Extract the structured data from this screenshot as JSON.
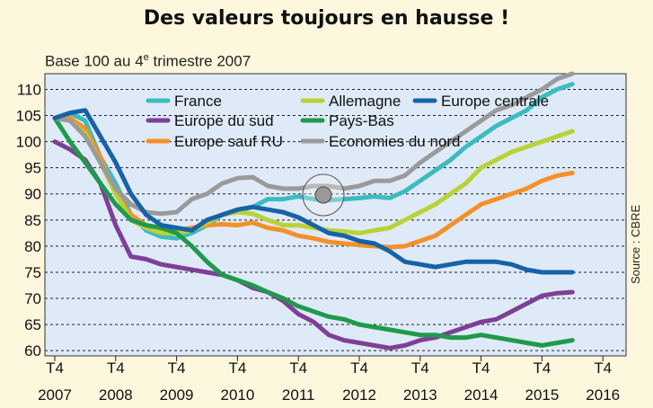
{
  "chart_data": {
    "type": "line",
    "title": "Des valeurs toujours en hausse !",
    "subtitle": {
      "base": "Base 100 au 4",
      "sup": "e",
      "rest": " trimestre 2007"
    },
    "source": "Source : CBRE",
    "x_ticks": [
      {
        "top": "T4",
        "bottom": "2007"
      },
      {
        "top": "T4",
        "bottom": "2008"
      },
      {
        "top": "T4",
        "bottom": "2009"
      },
      {
        "top": "T4",
        "bottom": "2010"
      },
      {
        "top": "T4",
        "bottom": "2011"
      },
      {
        "top": "T4",
        "bottom": "2012"
      },
      {
        "top": "T4",
        "bottom": "2013"
      },
      {
        "top": "T4",
        "bottom": "2014"
      },
      {
        "top": "T4",
        "bottom": "2015"
      },
      {
        "top": "T4",
        "bottom": "2016"
      }
    ],
    "y_ticks": [
      60,
      65,
      70,
      75,
      80,
      85,
      90,
      95,
      100,
      105,
      110
    ],
    "ylim": [
      59,
      113
    ],
    "xlim": [
      2007.75,
      2017.05
    ],
    "grid": "horizontal dashed",
    "legend": "top inside plot",
    "colors": {
      "plot_bg": "#dfeaf8",
      "page_bg": "#fdf7dd"
    },
    "series": [
      {
        "name": "France",
        "color": "#3bbcbf",
        "points": [
          [
            2007.75,
            104.5
          ],
          [
            2008.0,
            105.5
          ],
          [
            2008.25,
            104
          ],
          [
            2008.5,
            97
          ],
          [
            2008.75,
            92
          ],
          [
            2009.0,
            86
          ],
          [
            2009.25,
            83
          ],
          [
            2009.5,
            81.8
          ],
          [
            2009.75,
            81.5
          ],
          [
            2010.0,
            82.5
          ],
          [
            2010.25,
            84
          ],
          [
            2010.5,
            86
          ],
          [
            2010.75,
            86.8
          ],
          [
            2011.0,
            87.5
          ],
          [
            2011.25,
            89
          ],
          [
            2011.5,
            89
          ],
          [
            2011.75,
            89.5
          ],
          [
            2012.0,
            89
          ],
          [
            2012.25,
            88.8
          ],
          [
            2012.5,
            89
          ],
          [
            2012.75,
            89.2
          ],
          [
            2013.0,
            89.5
          ],
          [
            2013.25,
            89.2
          ],
          [
            2013.5,
            90.5
          ],
          [
            2013.75,
            92.5
          ],
          [
            2014.0,
            94.5
          ],
          [
            2014.25,
            96.5
          ],
          [
            2014.5,
            99
          ],
          [
            2014.75,
            101
          ],
          [
            2015.0,
            103
          ],
          [
            2015.25,
            104.5
          ],
          [
            2015.5,
            106
          ],
          [
            2015.75,
            108.5
          ],
          [
            2016.0,
            110
          ],
          [
            2016.25,
            111
          ]
        ]
      },
      {
        "name": "Europe du sud",
        "color": "#7e3f98",
        "points": [
          [
            2007.75,
            100
          ],
          [
            2008.0,
            98.5
          ],
          [
            2008.25,
            96.5
          ],
          [
            2008.5,
            92
          ],
          [
            2008.75,
            84
          ],
          [
            2009.0,
            78
          ],
          [
            2009.25,
            77.5
          ],
          [
            2009.5,
            76.5
          ],
          [
            2009.75,
            76
          ],
          [
            2010.0,
            75.5
          ],
          [
            2010.25,
            75
          ],
          [
            2010.5,
            74.5
          ],
          [
            2010.75,
            73.5
          ],
          [
            2011.0,
            72
          ],
          [
            2011.25,
            71.2
          ],
          [
            2011.5,
            69.5
          ],
          [
            2011.75,
            67
          ],
          [
            2012.0,
            65.5
          ],
          [
            2012.25,
            63
          ],
          [
            2012.5,
            62
          ],
          [
            2012.75,
            61.5
          ],
          [
            2013.0,
            61
          ],
          [
            2013.25,
            60.5
          ],
          [
            2013.5,
            61
          ],
          [
            2013.75,
            62
          ],
          [
            2014.0,
            62.5
          ],
          [
            2014.25,
            63.5
          ],
          [
            2014.5,
            64.5
          ],
          [
            2014.75,
            65.5
          ],
          [
            2015.0,
            66
          ],
          [
            2015.25,
            67.5
          ],
          [
            2015.5,
            69
          ],
          [
            2015.75,
            70.5
          ],
          [
            2016.0,
            71
          ],
          [
            2016.25,
            71.2
          ]
        ]
      },
      {
        "name": "Europe sauf RU",
        "color": "#f4902a",
        "points": [
          [
            2007.75,
            104.5
          ],
          [
            2008.0,
            104.5
          ],
          [
            2008.25,
            102.5
          ],
          [
            2008.5,
            97
          ],
          [
            2008.75,
            90
          ],
          [
            2009.0,
            86
          ],
          [
            2009.25,
            84
          ],
          [
            2009.5,
            83
          ],
          [
            2009.75,
            83
          ],
          [
            2010.0,
            83.5
          ],
          [
            2010.25,
            84
          ],
          [
            2010.5,
            84.2
          ],
          [
            2010.75,
            84
          ],
          [
            2011.0,
            84.5
          ],
          [
            2011.25,
            83.5
          ],
          [
            2011.5,
            83
          ],
          [
            2011.75,
            82
          ],
          [
            2012.0,
            81.5
          ],
          [
            2012.25,
            80.8
          ],
          [
            2012.5,
            80.5
          ],
          [
            2012.75,
            80.2
          ],
          [
            2013.0,
            80
          ],
          [
            2013.25,
            79.8
          ],
          [
            2013.5,
            80
          ],
          [
            2013.75,
            81
          ],
          [
            2014.0,
            82
          ],
          [
            2014.25,
            84
          ],
          [
            2014.5,
            86
          ],
          [
            2014.75,
            88
          ],
          [
            2015.0,
            89
          ],
          [
            2015.25,
            90
          ],
          [
            2015.5,
            91
          ],
          [
            2015.75,
            92.5
          ],
          [
            2016.0,
            93.5
          ],
          [
            2016.25,
            94
          ]
        ]
      },
      {
        "name": "Allemagne",
        "color": "#b9d234",
        "points": [
          [
            2007.75,
            104.5
          ],
          [
            2008.0,
            104
          ],
          [
            2008.25,
            101.5
          ],
          [
            2008.5,
            96
          ],
          [
            2008.75,
            90
          ],
          [
            2009.0,
            85
          ],
          [
            2009.25,
            83.5
          ],
          [
            2009.5,
            82.5
          ],
          [
            2009.75,
            82.5
          ],
          [
            2010.0,
            83
          ],
          [
            2010.25,
            84.5
          ],
          [
            2010.5,
            86
          ],
          [
            2010.75,
            86.5
          ],
          [
            2011.0,
            86.2
          ],
          [
            2011.25,
            85
          ],
          [
            2011.5,
            84
          ],
          [
            2011.75,
            84
          ],
          [
            2012.0,
            83.5
          ],
          [
            2012.25,
            83
          ],
          [
            2012.5,
            82.8
          ],
          [
            2012.75,
            82.5
          ],
          [
            2013.0,
            83
          ],
          [
            2013.25,
            83.5
          ],
          [
            2013.5,
            85
          ],
          [
            2013.75,
            86.5
          ],
          [
            2014.0,
            88
          ],
          [
            2014.25,
            90
          ],
          [
            2014.5,
            92
          ],
          [
            2014.75,
            95
          ],
          [
            2015.0,
            96.5
          ],
          [
            2015.25,
            98
          ],
          [
            2015.5,
            99
          ],
          [
            2015.75,
            100
          ],
          [
            2016.0,
            101
          ],
          [
            2016.25,
            102
          ]
        ]
      },
      {
        "name": "Pays-Bas",
        "color": "#1f9a4b",
        "points": [
          [
            2007.75,
            104.5
          ],
          [
            2008.0,
            100
          ],
          [
            2008.25,
            96
          ],
          [
            2008.5,
            92
          ],
          [
            2008.75,
            88
          ],
          [
            2009.0,
            85
          ],
          [
            2009.25,
            84
          ],
          [
            2009.5,
            83.5
          ],
          [
            2009.75,
            82.5
          ],
          [
            2010.0,
            80
          ],
          [
            2010.25,
            77
          ],
          [
            2010.5,
            74.5
          ],
          [
            2010.75,
            73.5
          ],
          [
            2011.0,
            72.5
          ],
          [
            2011.25,
            71.2
          ],
          [
            2011.5,
            70
          ],
          [
            2011.75,
            68.5
          ],
          [
            2012.0,
            67.5
          ],
          [
            2012.25,
            66.5
          ],
          [
            2012.5,
            66
          ],
          [
            2012.75,
            65
          ],
          [
            2013.0,
            64.5
          ],
          [
            2013.25,
            64
          ],
          [
            2013.5,
            63.5
          ],
          [
            2013.75,
            63
          ],
          [
            2014.0,
            63
          ],
          [
            2014.25,
            62.5
          ],
          [
            2014.5,
            62.5
          ],
          [
            2014.75,
            63
          ],
          [
            2015.0,
            62.5
          ],
          [
            2015.25,
            62
          ],
          [
            2015.5,
            61.5
          ],
          [
            2015.75,
            61
          ],
          [
            2016.0,
            61.5
          ],
          [
            2016.25,
            62
          ]
        ]
      },
      {
        "name": "Economies du nord",
        "color": "#9a9a9a",
        "points": [
          [
            2007.75,
            104.5
          ],
          [
            2008.0,
            104
          ],
          [
            2008.25,
            101
          ],
          [
            2008.5,
            96
          ],
          [
            2008.75,
            91
          ],
          [
            2009.0,
            88
          ],
          [
            2009.25,
            86.5
          ],
          [
            2009.5,
            86.2
          ],
          [
            2009.75,
            86.5
          ],
          [
            2010.0,
            89
          ],
          [
            2010.25,
            90
          ],
          [
            2010.5,
            92
          ],
          [
            2010.75,
            93
          ],
          [
            2011.0,
            93.2
          ],
          [
            2011.25,
            91.5
          ],
          [
            2011.5,
            91
          ],
          [
            2011.75,
            91
          ],
          [
            2012.0,
            91.5
          ],
          [
            2012.25,
            91.5
          ],
          [
            2012.5,
            91
          ],
          [
            2012.75,
            91.5
          ],
          [
            2013.0,
            92.5
          ],
          [
            2013.25,
            92.5
          ],
          [
            2013.5,
            93.5
          ],
          [
            2013.75,
            96
          ],
          [
            2014.0,
            98
          ],
          [
            2014.25,
            100
          ],
          [
            2014.5,
            102
          ],
          [
            2014.75,
            104
          ],
          [
            2015.0,
            106
          ],
          [
            2015.25,
            107
          ],
          [
            2015.5,
            108.5
          ],
          [
            2015.75,
            110
          ],
          [
            2016.0,
            112
          ],
          [
            2016.25,
            113
          ]
        ]
      },
      {
        "name": "Europe centrale",
        "color": "#1762a8",
        "points": [
          [
            2007.75,
            104.5
          ],
          [
            2008.0,
            105.5
          ],
          [
            2008.25,
            106
          ],
          [
            2008.5,
            101
          ],
          [
            2008.75,
            96
          ],
          [
            2009.0,
            90
          ],
          [
            2009.25,
            86
          ],
          [
            2009.5,
            84
          ],
          [
            2009.75,
            83.5
          ],
          [
            2010.0,
            83
          ],
          [
            2010.25,
            85
          ],
          [
            2010.5,
            86
          ],
          [
            2010.75,
            87
          ],
          [
            2011.0,
            87.5
          ],
          [
            2011.25,
            87
          ],
          [
            2011.5,
            86.5
          ],
          [
            2011.75,
            85.5
          ],
          [
            2012.0,
            84
          ],
          [
            2012.25,
            82.5
          ],
          [
            2012.5,
            82
          ],
          [
            2012.75,
            81
          ],
          [
            2013.0,
            80.5
          ],
          [
            2013.25,
            79
          ],
          [
            2013.5,
            77
          ],
          [
            2013.75,
            76.5
          ],
          [
            2014.0,
            76
          ],
          [
            2014.25,
            76.5
          ],
          [
            2014.5,
            77
          ],
          [
            2014.75,
            77
          ],
          [
            2015.0,
            77
          ],
          [
            2015.25,
            76.5
          ],
          [
            2015.5,
            75.5
          ],
          [
            2015.75,
            75
          ],
          [
            2016.0,
            75
          ],
          [
            2016.25,
            75
          ]
        ]
      }
    ],
    "legend_order": [
      "France",
      "Europe du sud",
      "Europe sauf RU",
      "Allemagne",
      "Pays-Bas",
      "Economies du nord",
      "Europe centrale"
    ]
  }
}
